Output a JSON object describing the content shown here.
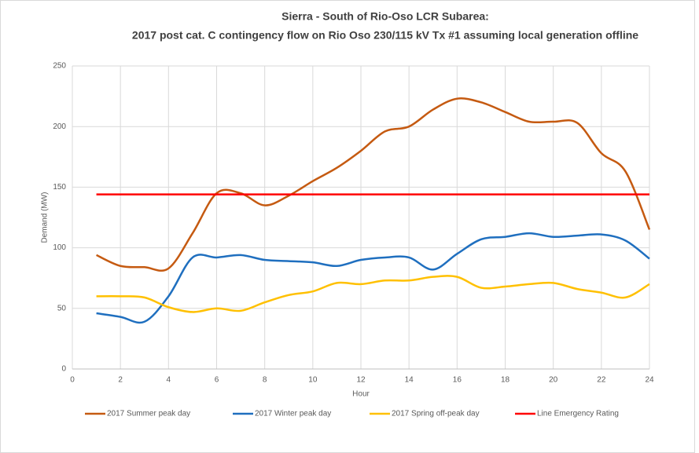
{
  "chart_data": {
    "type": "line",
    "title": "Sierra - South of Rio-Oso LCR Subarea:",
    "subtitle": "2017 post cat. C contingency flow on Rio Oso 230/115 kV Tx #1 assuming local generation offline",
    "xlabel": "Hour",
    "ylabel": "Demand (MW)",
    "x": [
      1,
      2,
      3,
      4,
      5,
      6,
      7,
      8,
      9,
      10,
      11,
      12,
      13,
      14,
      15,
      16,
      17,
      18,
      19,
      20,
      21,
      22,
      23,
      24
    ],
    "xlim": [
      0,
      24
    ],
    "xticks": [
      0,
      2,
      4,
      6,
      8,
      10,
      12,
      14,
      16,
      18,
      20,
      22,
      24
    ],
    "ylim": [
      0,
      250
    ],
    "yticks": [
      0,
      50,
      100,
      150,
      200,
      250
    ],
    "grid": true,
    "smooth": true,
    "legend": "bottom",
    "series": [
      {
        "name": "2017 Summer peak day",
        "color": "#c55a11",
        "values": [
          94,
          85,
          84,
          83,
          112,
          145,
          145,
          135,
          143,
          155,
          166,
          180,
          196,
          200,
          214,
          223,
          220,
          212,
          204,
          204,
          203,
          178,
          163,
          115
        ]
      },
      {
        "name": "2017 Winter peak day",
        "color": "#1f6fbf",
        "values": [
          46,
          43,
          39,
          60,
          92,
          92,
          94,
          90,
          89,
          88,
          85,
          90,
          92,
          92,
          82,
          95,
          107,
          109,
          112,
          109,
          110,
          111,
          106,
          91
        ]
      },
      {
        "name": "2017 Spring off-peak day",
        "color": "#ffc000",
        "values": [
          60,
          60,
          59,
          51,
          47,
          50,
          48,
          55,
          61,
          64,
          71,
          70,
          73,
          73,
          76,
          76,
          67,
          68,
          70,
          71,
          66,
          63,
          59,
          70
        ]
      },
      {
        "name": "Line Emergency Rating",
        "color": "#ff0000",
        "values": [
          144,
          144,
          144,
          144,
          144,
          144,
          144,
          144,
          144,
          144,
          144,
          144,
          144,
          144,
          144,
          144,
          144,
          144,
          144,
          144,
          144,
          144,
          144,
          144
        ]
      }
    ]
  }
}
